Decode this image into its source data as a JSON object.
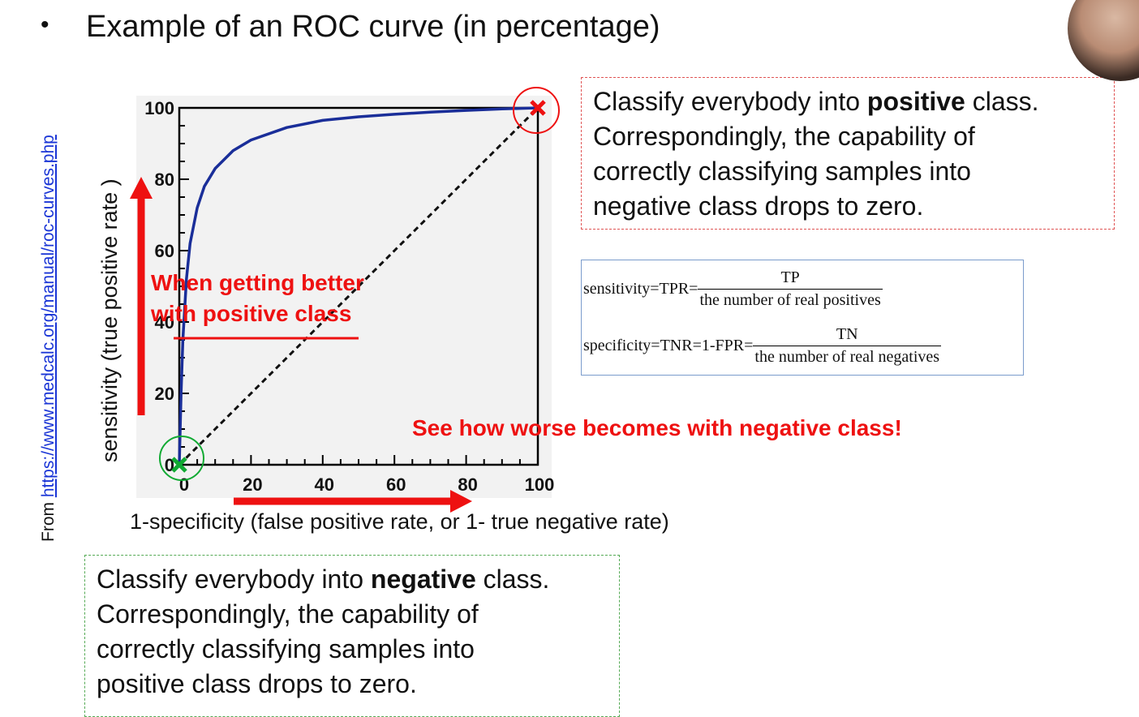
{
  "slide": {
    "bullet": "•",
    "title": "Example of an ROC curve (in percentage)",
    "source_prefix": "From ",
    "source_link": "https://www.medcalc.org/manual/roc-curves.php"
  },
  "chart_data": {
    "type": "line",
    "xlabel": "1-specificity (false positive rate, or 1- true negative rate)",
    "ylabel": "sensitivity (true positive rate )",
    "xlim": [
      0,
      100
    ],
    "ylim": [
      0,
      100
    ],
    "x_ticks": [
      0,
      20,
      40,
      60,
      80,
      100
    ],
    "y_ticks": [
      0,
      20,
      40,
      60,
      80,
      100
    ],
    "grid": false,
    "series": [
      {
        "x": [
          0,
          0.5,
          1,
          2,
          3,
          5,
          7,
          10,
          15,
          20,
          30,
          40,
          50,
          60,
          70,
          80,
          90,
          100
        ],
        "y": [
          0,
          20,
          35,
          52,
          62,
          72,
          78,
          83,
          88,
          91,
          94.5,
          96.5,
          97.5,
          98.2,
          98.8,
          99.3,
          99.7,
          100
        ],
        "color": "#1a2e99",
        "style": "solid"
      },
      {
        "x": [
          0,
          100
        ],
        "y": [
          0,
          100
        ],
        "color": "#111111",
        "style": "dashed"
      }
    ],
    "markers": [
      {
        "x": 0,
        "y": 0,
        "symbol": "x",
        "color": "#11aa33"
      },
      {
        "x": 100,
        "y": 100,
        "symbol": "x",
        "color": "#ee1111"
      }
    ]
  },
  "annotations": {
    "up_note_line1": "When getting better",
    "up_note_line2": "with positive class",
    "right_note": "See how  worse becomes with negative class!",
    "colors": {
      "red": "#ee1111",
      "green": "#11aa33",
      "curve": "#1a2e99"
    }
  },
  "positive_box": {
    "pre": "Classify everybody into ",
    "bold": "positive",
    "post": " class.",
    "line2": "Correspondingly, the capability of",
    "line3": "correctly classifying samples into",
    "line4": "negative class drops to zero."
  },
  "negative_box": {
    "pre": "Classify everybody into ",
    "bold": "negative",
    "post": " class.",
    "line2": "Correspondingly, the capability of",
    "line3": "correctly classifying samples into",
    "line4": "positive class drops to zero."
  },
  "formulas": {
    "sens_lhs": "sensitivity=TPR=",
    "sens_num": "TP",
    "sens_den": "the number of real positives",
    "spec_lhs": "specificity=TNR=1-FPR=",
    "spec_num": "TN",
    "spec_den": "the number of real negatives"
  }
}
